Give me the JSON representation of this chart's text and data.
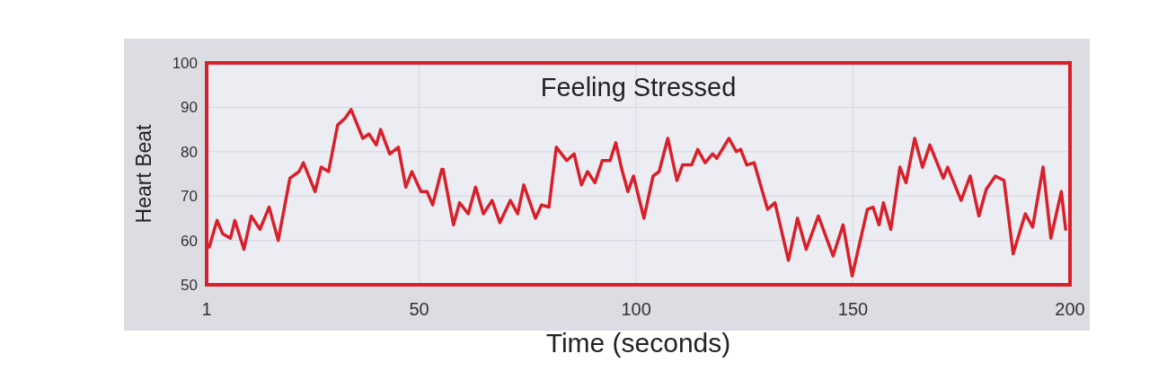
{
  "chart_data": {
    "type": "line",
    "title": "Feeling Stressed",
    "xlabel": "Time (seconds)",
    "ylabel": "Heart Beat",
    "xlim": [
      1,
      200
    ],
    "xticks": [
      1,
      50,
      100,
      150,
      200
    ],
    "ylim": [
      50,
      100
    ],
    "yticks": [
      50,
      60,
      70,
      80,
      90,
      100
    ],
    "grid": true,
    "line_style": "solid",
    "marker": "none",
    "series": [
      {
        "color": "#d8202a",
        "x": [
          1.6,
          3.4,
          4.7,
          6.5,
          7.5,
          9.6,
          11.3,
          13.3,
          15.4,
          17.5,
          20.2,
          22.3,
          23.3,
          26,
          27.4,
          29.1,
          31.2,
          32.9,
          34.3,
          37,
          38.4,
          40.1,
          41.1,
          43.2,
          45.2,
          46.9,
          48.3,
          50.4,
          51.8,
          53.1,
          55.2,
          55.5,
          57.9,
          59.3,
          61.3,
          63,
          64.8,
          66.8,
          68.6,
          71,
          72.7,
          74.1,
          76.8,
          78.2,
          79.9,
          81.6,
          84,
          85.7,
          87.4,
          88.8,
          90.5,
          92.2,
          94,
          95.3,
          96.7,
          98.1,
          99.4,
          101.8,
          103.9,
          105.3,
          107.3,
          109.4,
          110.7,
          112.8,
          114.2,
          115.9,
          117.6,
          118.6,
          121.4,
          123.1,
          124.1,
          125.5,
          127.2,
          130.3,
          132,
          135.1,
          137.2,
          139.2,
          142,
          145.4,
          147.7,
          149.8,
          153.3,
          154.6,
          156,
          157,
          158.7,
          160.8,
          162.2,
          164.2,
          166,
          167.7,
          170.8,
          171.8,
          174.9,
          177,
          179,
          180.7,
          182.8,
          184.8,
          186.9,
          189.7,
          191.4,
          193.8,
          195.6,
          198,
          199
        ],
        "values": [
          58.5,
          64.5,
          61.5,
          60.5,
          64.5,
          58,
          65.5,
          62.5,
          67.5,
          60,
          74,
          75.5,
          77.5,
          71,
          76.5,
          75.5,
          86,
          87.5,
          89.5,
          83,
          84,
          81.5,
          85,
          79.5,
          81,
          72,
          75.5,
          71,
          71,
          68,
          76,
          76,
          63.5,
          68.5,
          66,
          72,
          66,
          69,
          64,
          69,
          66,
          72.5,
          65,
          68,
          67.5,
          81,
          78,
          79.5,
          72.5,
          75.5,
          73,
          78,
          78,
          82,
          76,
          71,
          74.5,
          65,
          74.5,
          75.5,
          83,
          73.5,
          77,
          77,
          80.5,
          77.5,
          79.5,
          78.5,
          83,
          80,
          80.5,
          77,
          77.5,
          67,
          68.5,
          55.5,
          65,
          58,
          65.5,
          56.5,
          63.5,
          52,
          67,
          67.5,
          63.5,
          68.5,
          62.5,
          76.5,
          73,
          83,
          76.5,
          81.5,
          74,
          76.5,
          69,
          74.5,
          65.5,
          71.5,
          74.5,
          73.5,
          57,
          66,
          63,
          76.5,
          60.5,
          71,
          62.5
        ]
      }
    ]
  }
}
